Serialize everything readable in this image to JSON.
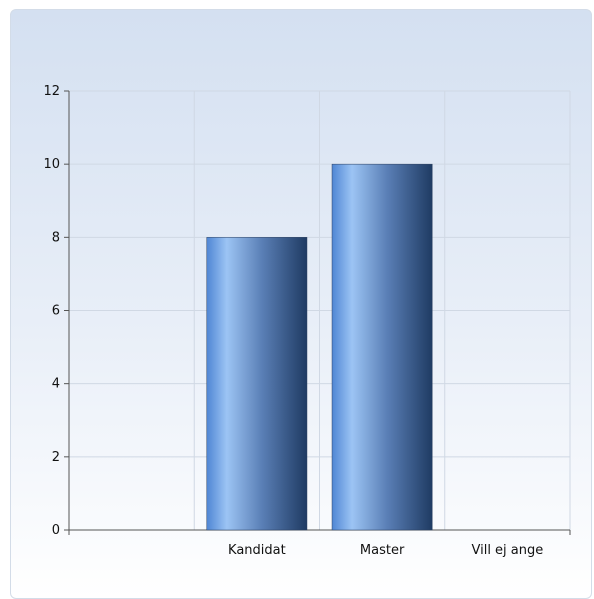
{
  "chart_data": {
    "type": "bar",
    "categories": [
      "",
      "Kandidat",
      "Master",
      "Vill ej ange"
    ],
    "values": [
      null,
      8,
      10,
      0
    ],
    "title": "",
    "xlabel": "",
    "ylabel": "",
    "ylim": [
      0,
      12
    ],
    "yticks": [
      0,
      2,
      4,
      6,
      8,
      10,
      12
    ],
    "grid": true,
    "legend": "none",
    "colors": {
      "bar_light": "#9cc4f4",
      "bar_mid": "#5a8fd6",
      "bar_dark": "#1f3b63",
      "grid": "#d0d8e4",
      "axis": "#555555"
    }
  }
}
